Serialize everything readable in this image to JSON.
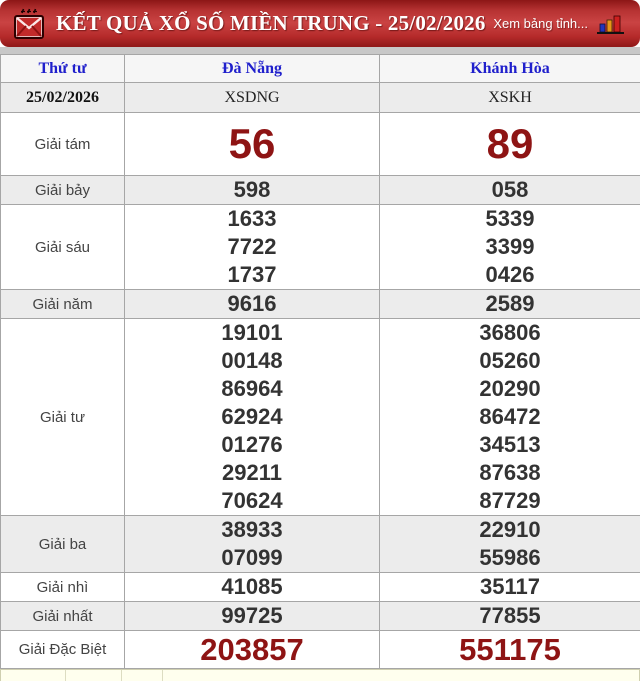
{
  "header": {
    "title": "KẾT QUẢ XỔ SỐ MIỀN TRUNG - 25/02/2026",
    "link_label": "Xem bảng tỉnh...",
    "icons": {
      "left": "mail-icon",
      "right": "bar-chart-icon"
    }
  },
  "colors": {
    "header_red_top": "#8c1616",
    "header_red_mid": "#ca4343",
    "accent_red_numbers": "#8e1414",
    "column_header_blue": "#2020cc",
    "shaded_row": "#ececec",
    "number_gray": "#333333"
  },
  "table": {
    "columns": [
      "Thứ tư",
      "Đà Nẵng",
      "Khánh Hòa"
    ],
    "date": "25/02/2026",
    "codes": [
      "XSDNG",
      "XSKH"
    ],
    "prizes": [
      {
        "label": "Giải tám",
        "emphasis": "xl",
        "shaded": false,
        "da_nang": [
          "56"
        ],
        "khanh_hoa": [
          "89"
        ]
      },
      {
        "label": "Giải bảy",
        "emphasis": "normal",
        "shaded": true,
        "da_nang": [
          "598"
        ],
        "khanh_hoa": [
          "058"
        ]
      },
      {
        "label": "Giải sáu",
        "emphasis": "normal",
        "shaded": false,
        "da_nang": [
          "1633",
          "7722",
          "1737"
        ],
        "khanh_hoa": [
          "5339",
          "3399",
          "0426"
        ]
      },
      {
        "label": "Giải năm",
        "emphasis": "normal",
        "shaded": true,
        "da_nang": [
          "9616"
        ],
        "khanh_hoa": [
          "2589"
        ]
      },
      {
        "label": "Giải tư",
        "emphasis": "normal",
        "shaded": false,
        "da_nang": [
          "19101",
          "00148",
          "86964",
          "62924",
          "01276",
          "29211",
          "70624"
        ],
        "khanh_hoa": [
          "36806",
          "05260",
          "20290",
          "86472",
          "34513",
          "87638",
          "87729"
        ]
      },
      {
        "label": "Giải ba",
        "emphasis": "normal",
        "shaded": true,
        "da_nang": [
          "38933",
          "07099"
        ],
        "khanh_hoa": [
          "22910",
          "55986"
        ]
      },
      {
        "label": "Giải nhì",
        "emphasis": "normal",
        "shaded": false,
        "da_nang": [
          "41085"
        ],
        "khanh_hoa": [
          "35117"
        ]
      },
      {
        "label": "Giải nhất",
        "emphasis": "normal",
        "shaded": true,
        "da_nang": [
          "99725"
        ],
        "khanh_hoa": [
          "77855"
        ]
      },
      {
        "label": "Giải Đặc Biệt",
        "emphasis": "lg",
        "shaded": false,
        "da_nang": [
          "203857"
        ],
        "khanh_hoa": [
          "551175"
        ]
      }
    ]
  }
}
